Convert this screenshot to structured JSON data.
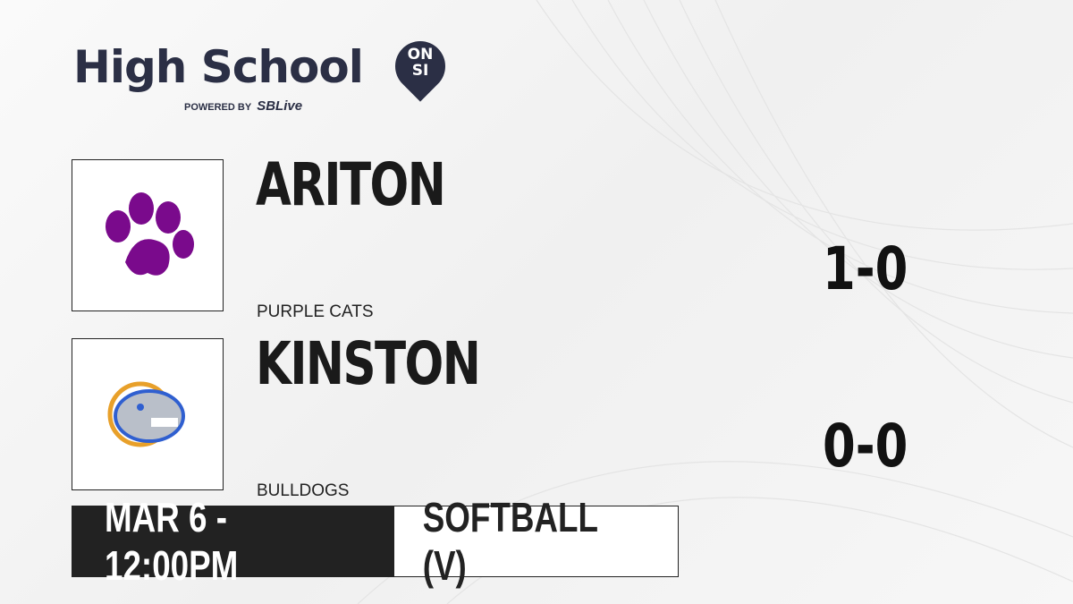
{
  "brand": {
    "title": "High School",
    "badge_top": "ON",
    "badge_bottom": "SI",
    "powered_by": "POWERED BY",
    "partner": "SBLive"
  },
  "teams": [
    {
      "name": "ARITON",
      "mascot": "PURPLE CATS",
      "record": "1-0",
      "logo": "purple-paw-icon",
      "color": "#7a0a8c"
    },
    {
      "name": "KINSTON",
      "mascot": "BULLDOGS",
      "record": "0-0",
      "logo": "bulldog-icon",
      "color": "#2f5fd0"
    }
  ],
  "game": {
    "datetime": "MAR 6 - 12:00PM",
    "sport": "SOFTBALL (V)"
  }
}
